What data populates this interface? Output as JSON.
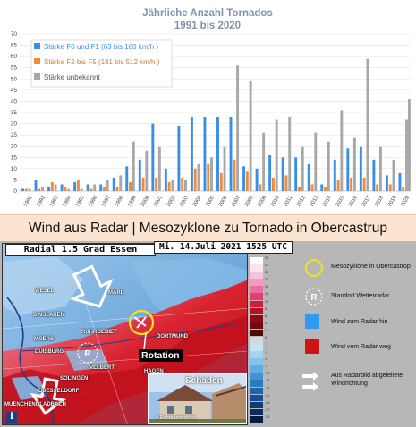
{
  "chart_data": {
    "type": "bar",
    "title": "Jährliche Anzahl Tornados",
    "subtitle": "1991 bis 2020",
    "categories": [
      "1991",
      "1992",
      "1993",
      "1994",
      "1995",
      "1996",
      "1997",
      "1998",
      "1999",
      "2000",
      "2001",
      "2002",
      "2003",
      "2004",
      "2005",
      "2006",
      "2007",
      "2008",
      "2009",
      "2010",
      "2011",
      "2012",
      "2013",
      "2014",
      "2015",
      "2016",
      "2017",
      "2018",
      "2019",
      "2020"
    ],
    "series": [
      {
        "name": "Stärke F0 und F1 (63 bis 180 km/h )",
        "color": "#3a8ee6",
        "values": [
          1,
          5,
          2,
          3,
          4,
          3,
          3,
          6,
          11,
          14,
          30,
          10,
          29,
          33,
          33,
          33,
          33,
          11,
          10,
          16,
          15,
          15,
          12,
          3,
          14,
          19,
          20,
          14,
          7,
          8
        ]
      },
      {
        "name": "Stärke F2 bis F5  (181 bis 512 km/h )",
        "color": "#f08a3c",
        "values": [
          1,
          1,
          4,
          2,
          5,
          1,
          2,
          2,
          4,
          6,
          6,
          4,
          6,
          10,
          12,
          8,
          14,
          9,
          3,
          6,
          7,
          2,
          3,
          2,
          5,
          6,
          6,
          3,
          3,
          2
        ]
      },
      {
        "name": "Stärke unbekannt",
        "color": "#a8a8a8",
        "values": [
          1,
          2,
          3,
          1,
          1,
          3,
          5,
          7,
          22,
          18,
          20,
          5,
          5,
          12,
          15,
          20,
          56,
          49,
          26,
          32,
          33,
          20,
          26,
          22,
          36,
          24,
          59,
          20,
          14,
          32
        ]
      }
    ],
    "extra_bar": {
      "category": "2020",
      "series": "Stärke unbekannt",
      "value": 41
    },
    "ylim": [
      0,
      70
    ],
    "yticks": [
      0,
      5,
      10,
      15,
      20,
      25,
      30,
      35,
      40,
      45,
      50,
      55,
      60,
      65,
      70
    ],
    "grid": true,
    "legend_position": "top-left"
  },
  "banner": {
    "text": "Wind aus Radar | Mesozyklone zu Tornado in Obercastrup"
  },
  "radar": {
    "header_left": "Radial 1.5 Grad Essen",
    "header_right": "Mi. 14.Juli 2021 1525 UTC",
    "rotation_label": "Rotation",
    "damage_label": "Schäden",
    "photo_credit": "© Ruhrnachrichten",
    "info_icon": "i",
    "cities": [
      "WESEL",
      "DINSLAKEN",
      "MARL",
      "MOERS",
      "DUISBURG",
      "RUHRGEBIET",
      "DORTMUND",
      "VELBERT",
      "HAGEN",
      "SOLINGEN",
      "DUESSELDORF",
      "MUENCHENGLADBACH"
    ],
    "scale_labels": [
      "30",
      "27",
      "24",
      "21",
      "18",
      "15",
      "12",
      "9",
      "6",
      "3",
      "1",
      "0",
      "-1",
      "-3",
      "-6",
      "-9",
      "-12",
      "-15",
      "-18",
      "-21",
      "-24",
      "-27",
      "-30"
    ]
  },
  "legend": {
    "mesocyclone": "Mesozyklone in Obercastrop",
    "radar_site": "Standort Wetterradar",
    "toward": "Wind zum Radar hin",
    "away": "Wind vom Radar weg",
    "direction": "Aus Radarbild abgeleitete Windrichtung",
    "radar_symbol": "R",
    "colors": {
      "toward": "#2f9cf0",
      "away": "#d01414",
      "meso": "#f2e21a"
    }
  }
}
